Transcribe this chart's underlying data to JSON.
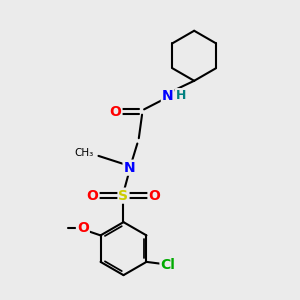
{
  "background_color": "#ebebeb",
  "bond_color": "#000000",
  "bond_width": 1.5,
  "atom_colors": {
    "O": "#ff0000",
    "N": "#0000ff",
    "H": "#008080",
    "S": "#cccc00",
    "Cl": "#00aa00",
    "C": "#000000"
  },
  "font_size_atoms": 10,
  "font_size_H": 9,
  "figsize": [
    3.0,
    3.0
  ],
  "dpi": 100
}
